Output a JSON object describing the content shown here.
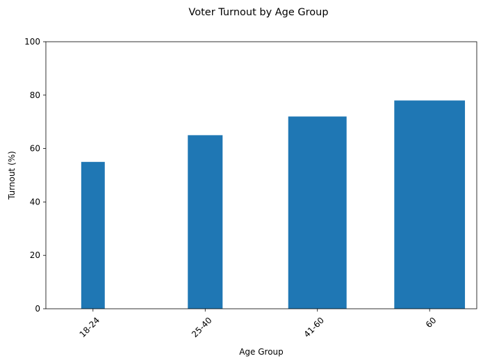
{
  "chart_data": {
    "type": "bar",
    "title": "Voter Turnout by Age Group",
    "xlabel": "Age Group",
    "ylabel": "Turnout (%)",
    "categories": [
      "18-24",
      "25-40",
      "41-60",
      "60"
    ],
    "values": [
      55,
      65,
      72,
      78
    ],
    "bar_width_fraction": [
      0.21,
      0.31,
      0.52,
      0.63
    ],
    "ylim": [
      0,
      100
    ],
    "yticks": [
      0,
      20,
      40,
      60,
      80,
      100
    ],
    "xtick_rotation_deg": 45,
    "bar_color": "#1f77b4",
    "grid": false,
    "legend": "none"
  }
}
